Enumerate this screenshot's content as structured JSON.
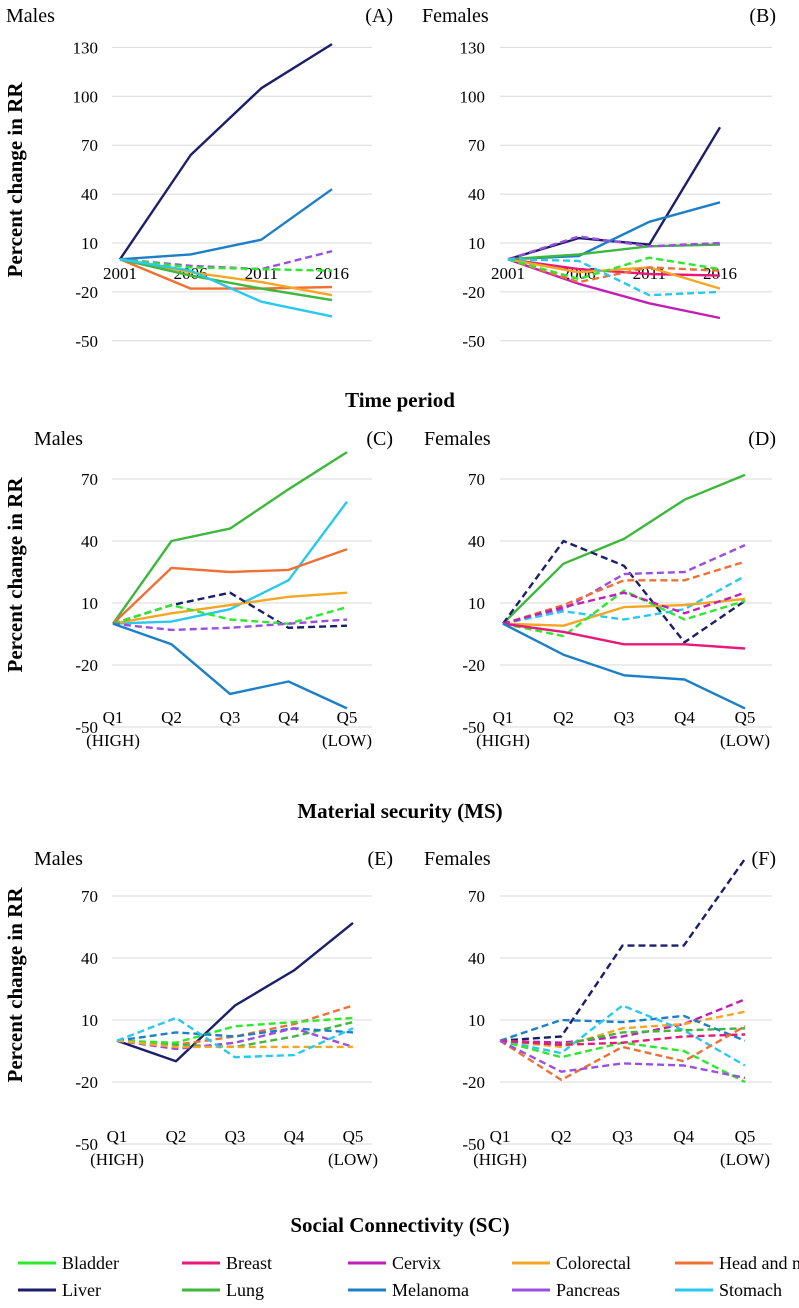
{
  "ylabel": "Percent change in RR",
  "colors": {
    "Bladder": "#2ee82e",
    "Breast": "#e8197a",
    "Cervix": "#c21fb5",
    "Colorectal": "#f5a623",
    "Head and neck": "#ee7035",
    "Liver": "#1b1f6b",
    "Lung": "#3db83d",
    "Melanoma": "#1c7fc7",
    "Pancreas": "#9b4fe0",
    "Stomach": "#27c9ee"
  },
  "legend": [
    {
      "name": "Bladder"
    },
    {
      "name": "Breast"
    },
    {
      "name": "Cervix"
    },
    {
      "name": "Colorectal"
    },
    {
      "name": "Head and neck"
    },
    {
      "name": "Liver"
    },
    {
      "name": "Lung"
    },
    {
      "name": "Melanoma"
    },
    {
      "name": "Pancreas"
    },
    {
      "name": "Stomach"
    }
  ],
  "row_titles": [
    "Time period",
    "Material security (MS)",
    "Social Connectivity (SC)"
  ],
  "chart_data": [
    {
      "id": "A",
      "sex": "Males",
      "label": "(A)",
      "type": "line",
      "categories": [
        [
          "2001"
        ],
        [
          "2006"
        ],
        [
          "2011"
        ],
        [
          "2016"
        ]
      ],
      "yticks": [
        130,
        100,
        70,
        40,
        10,
        -20,
        -50
      ],
      "ylim": [
        -50,
        130
      ],
      "series": [
        {
          "name": "Liver",
          "dashed": false,
          "values": [
            0,
            64,
            105,
            132
          ]
        },
        {
          "name": "Melanoma",
          "dashed": false,
          "values": [
            0,
            3,
            12,
            43
          ]
        },
        {
          "name": "Pancreas",
          "dashed": true,
          "values": [
            0,
            -4,
            -6,
            5
          ]
        },
        {
          "name": "Bladder",
          "dashed": true,
          "values": [
            0,
            -5,
            -6,
            -7
          ]
        },
        {
          "name": "Head and neck",
          "dashed": false,
          "values": [
            0,
            -18,
            -18,
            -17
          ]
        },
        {
          "name": "Colorectal",
          "dashed": false,
          "values": [
            0,
            -8,
            -14,
            -22
          ]
        },
        {
          "name": "Lung",
          "dashed": false,
          "values": [
            0,
            -10,
            -18,
            -25
          ]
        },
        {
          "name": "Stomach",
          "dashed": false,
          "values": [
            0,
            -7,
            -26,
            -35
          ]
        }
      ]
    },
    {
      "id": "B",
      "sex": "Females",
      "label": "(B)",
      "type": "line",
      "categories": [
        [
          "2001"
        ],
        [
          "2006"
        ],
        [
          "2011"
        ],
        [
          "2016"
        ]
      ],
      "yticks": [
        130,
        100,
        70,
        40,
        10,
        -20,
        -50
      ],
      "ylim": [
        -50,
        130
      ],
      "series": [
        {
          "name": "Liver",
          "dashed": false,
          "values": [
            0,
            13,
            9,
            81
          ]
        },
        {
          "name": "Melanoma",
          "dashed": false,
          "values": [
            0,
            2,
            23,
            35
          ]
        },
        {
          "name": "Lung",
          "dashed": false,
          "values": [
            0,
            3,
            8,
            9
          ]
        },
        {
          "name": "Pancreas",
          "dashed": true,
          "values": [
            0,
            14,
            8,
            10
          ]
        },
        {
          "name": "Cervix",
          "dashed": false,
          "values": [
            0,
            -15,
            -27,
            -36
          ]
        },
        {
          "name": "Breast",
          "dashed": false,
          "values": [
            0,
            -6,
            -9,
            -10
          ]
        },
        {
          "name": "Colorectal",
          "dashed": false,
          "values": [
            0,
            -8,
            -5,
            -18
          ]
        },
        {
          "name": "Head and neck",
          "dashed": true,
          "values": [
            0,
            -14,
            -5,
            -7
          ]
        },
        {
          "name": "Bladder",
          "dashed": true,
          "values": [
            0,
            -12,
            1,
            -6
          ]
        },
        {
          "name": "Stomach",
          "dashed": true,
          "values": [
            0,
            -1,
            -22,
            -20
          ]
        }
      ]
    },
    {
      "id": "C",
      "sex": "Males",
      "label": "(C)",
      "type": "line",
      "categories": [
        [
          "Q1",
          "(HIGH)"
        ],
        [
          "Q2"
        ],
        [
          "Q3"
        ],
        [
          "Q4"
        ],
        [
          "Q5",
          "(LOW)"
        ]
      ],
      "yticks": [
        70,
        40,
        10,
        -20,
        -50
      ],
      "ylim": [
        -50,
        85
      ],
      "series": [
        {
          "name": "Lung",
          "dashed": false,
          "values": [
            0,
            40,
            46,
            65,
            83
          ]
        },
        {
          "name": "Stomach",
          "dashed": false,
          "values": [
            0,
            1,
            7,
            21,
            59
          ]
        },
        {
          "name": "Head and neck",
          "dashed": false,
          "values": [
            0,
            27,
            25,
            26,
            36
          ]
        },
        {
          "name": "Colorectal",
          "dashed": false,
          "values": [
            0,
            5,
            9,
            13,
            15
          ]
        },
        {
          "name": "Liver",
          "dashed": true,
          "values": [
            0,
            9,
            15,
            -2,
            -1
          ]
        },
        {
          "name": "Bladder",
          "dashed": true,
          "values": [
            0,
            9,
            2,
            0,
            8
          ]
        },
        {
          "name": "Pancreas",
          "dashed": true,
          "values": [
            0,
            -3,
            -2,
            0,
            2
          ]
        },
        {
          "name": "Melanoma",
          "dashed": false,
          "values": [
            0,
            -10,
            -34,
            -28,
            -41
          ]
        }
      ]
    },
    {
      "id": "D",
      "sex": "Females",
      "label": "(D)",
      "type": "line",
      "categories": [
        [
          "Q1",
          "(HIGH)"
        ],
        [
          "Q2"
        ],
        [
          "Q3"
        ],
        [
          "Q4"
        ],
        [
          "Q5",
          "(LOW)"
        ]
      ],
      "yticks": [
        70,
        40,
        10,
        -20,
        -50
      ],
      "ylim": [
        -50,
        85
      ],
      "series": [
        {
          "name": "Lung",
          "dashed": false,
          "values": [
            0,
            29,
            41,
            60,
            72
          ]
        },
        {
          "name": "Liver",
          "dashed": true,
          "values": [
            0,
            40,
            28,
            -9,
            11
          ]
        },
        {
          "name": "Pancreas",
          "dashed": true,
          "values": [
            0,
            7,
            24,
            25,
            38
          ]
        },
        {
          "name": "Head and neck",
          "dashed": true,
          "values": [
            0,
            9,
            21,
            21,
            30
          ]
        },
        {
          "name": "Stomach",
          "dashed": true,
          "values": [
            0,
            6,
            2,
            7,
            23
          ]
        },
        {
          "name": "Colorectal",
          "dashed": false,
          "values": [
            0,
            -1,
            8,
            9,
            12
          ]
        },
        {
          "name": "Bladder",
          "dashed": true,
          "values": [
            0,
            -6,
            16,
            2,
            11
          ]
        },
        {
          "name": "Cervix",
          "dashed": true,
          "values": [
            0,
            8,
            15,
            5,
            15
          ]
        },
        {
          "name": "Breast",
          "dashed": false,
          "values": [
            0,
            -4,
            -10,
            -10,
            -12
          ]
        },
        {
          "name": "Melanoma",
          "dashed": false,
          "values": [
            0,
            -15,
            -25,
            -27,
            -41
          ]
        }
      ]
    },
    {
      "id": "E",
      "sex": "Males",
      "label": "(E)",
      "type": "line",
      "categories": [
        [
          "Q1",
          "(HIGH)"
        ],
        [
          "Q2"
        ],
        [
          "Q3"
        ],
        [
          "Q4"
        ],
        [
          "Q5",
          "(LOW)"
        ]
      ],
      "yticks": [
        70,
        40,
        10,
        -20,
        -50
      ],
      "ylim": [
        -50,
        85
      ],
      "series": [
        {
          "name": "Liver",
          "dashed": false,
          "values": [
            0,
            -10,
            17,
            34,
            57
          ]
        },
        {
          "name": "Head and neck",
          "dashed": true,
          "values": [
            0,
            -2,
            2,
            8,
            17
          ]
        },
        {
          "name": "Lung",
          "dashed": true,
          "values": [
            0,
            -2,
            -3,
            2,
            9
          ]
        },
        {
          "name": "Bladder",
          "dashed": true,
          "values": [
            0,
            -1,
            7,
            9,
            11
          ]
        },
        {
          "name": "Melanoma",
          "dashed": true,
          "values": [
            0,
            4,
            2,
            6,
            4
          ]
        },
        {
          "name": "Pancreas",
          "dashed": true,
          "values": [
            0,
            -4,
            -1,
            6,
            -3
          ]
        },
        {
          "name": "Colorectal",
          "dashed": true,
          "values": [
            0,
            -3,
            -3,
            -3,
            -3
          ]
        },
        {
          "name": "Stomach",
          "dashed": true,
          "values": [
            0,
            11,
            -8,
            -7,
            6
          ]
        }
      ]
    },
    {
      "id": "F",
      "sex": "Females",
      "label": "(F)",
      "type": "line",
      "categories": [
        [
          "Q1",
          "(HIGH)"
        ],
        [
          "Q2"
        ],
        [
          "Q3"
        ],
        [
          "Q4"
        ],
        [
          "Q5",
          "(LOW)"
        ]
      ],
      "yticks": [
        70,
        40,
        10,
        -20,
        -50
      ],
      "ylim": [
        -50,
        85
      ],
      "series": [
        {
          "name": "Liver",
          "dashed": true,
          "values": [
            0,
            2,
            46,
            46,
            88
          ]
        },
        {
          "name": "Cervix",
          "dashed": true,
          "values": [
            0,
            -1,
            2,
            8,
            20
          ]
        },
        {
          "name": "Colorectal",
          "dashed": true,
          "values": [
            0,
            -3,
            6,
            8,
            14
          ]
        },
        {
          "name": "Melanoma",
          "dashed": true,
          "values": [
            0,
            10,
            9,
            12,
            0
          ]
        },
        {
          "name": "Stomach",
          "dashed": true,
          "values": [
            0,
            -6,
            17,
            5,
            -12
          ]
        },
        {
          "name": "Bladder",
          "dashed": true,
          "values": [
            0,
            -8,
            -1,
            -5,
            -20
          ]
        },
        {
          "name": "Lung",
          "dashed": true,
          "values": [
            0,
            -2,
            4,
            5,
            6
          ]
        },
        {
          "name": "Breast",
          "dashed": true,
          "values": [
            0,
            -2,
            -1,
            2,
            3
          ]
        },
        {
          "name": "Head and neck",
          "dashed": true,
          "values": [
            0,
            -19,
            -3,
            -10,
            7
          ]
        },
        {
          "name": "Pancreas",
          "dashed": true,
          "values": [
            0,
            -15,
            -11,
            -12,
            -18
          ]
        }
      ]
    }
  ]
}
